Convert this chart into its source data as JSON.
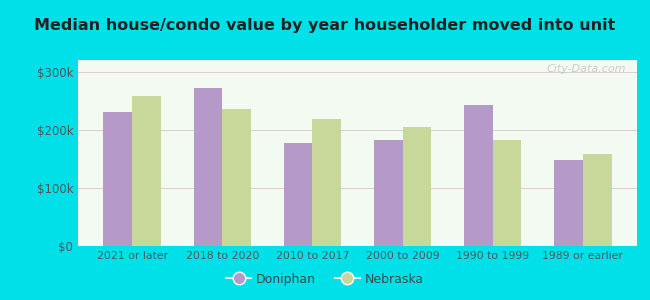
{
  "title": "Median house/condo value by year householder moved into unit",
  "categories": [
    "2021 or later",
    "2018 to 2020",
    "2010 to 2017",
    "2000 to 2009",
    "1990 to 1999",
    "1989 or earlier"
  ],
  "doniphan_values": [
    230000,
    272000,
    178000,
    183000,
    242000,
    148000
  ],
  "nebraska_values": [
    258000,
    235000,
    218000,
    205000,
    183000,
    158000
  ],
  "doniphan_color": "#b59ac9",
  "nebraska_color": "#c8d89a",
  "background_outer": "#00e0e8",
  "background_inner_top": "#e8f5e2",
  "background_inner": "#f2faf2",
  "yticks": [
    0,
    100000,
    200000,
    300000
  ],
  "ytick_labels": [
    "$0",
    "$100k",
    "$200k",
    "$300k"
  ],
  "ylim": [
    0,
    320000
  ],
  "legend_labels": [
    "Doniphan",
    "Nebraska"
  ],
  "watermark": "City-Data.com"
}
